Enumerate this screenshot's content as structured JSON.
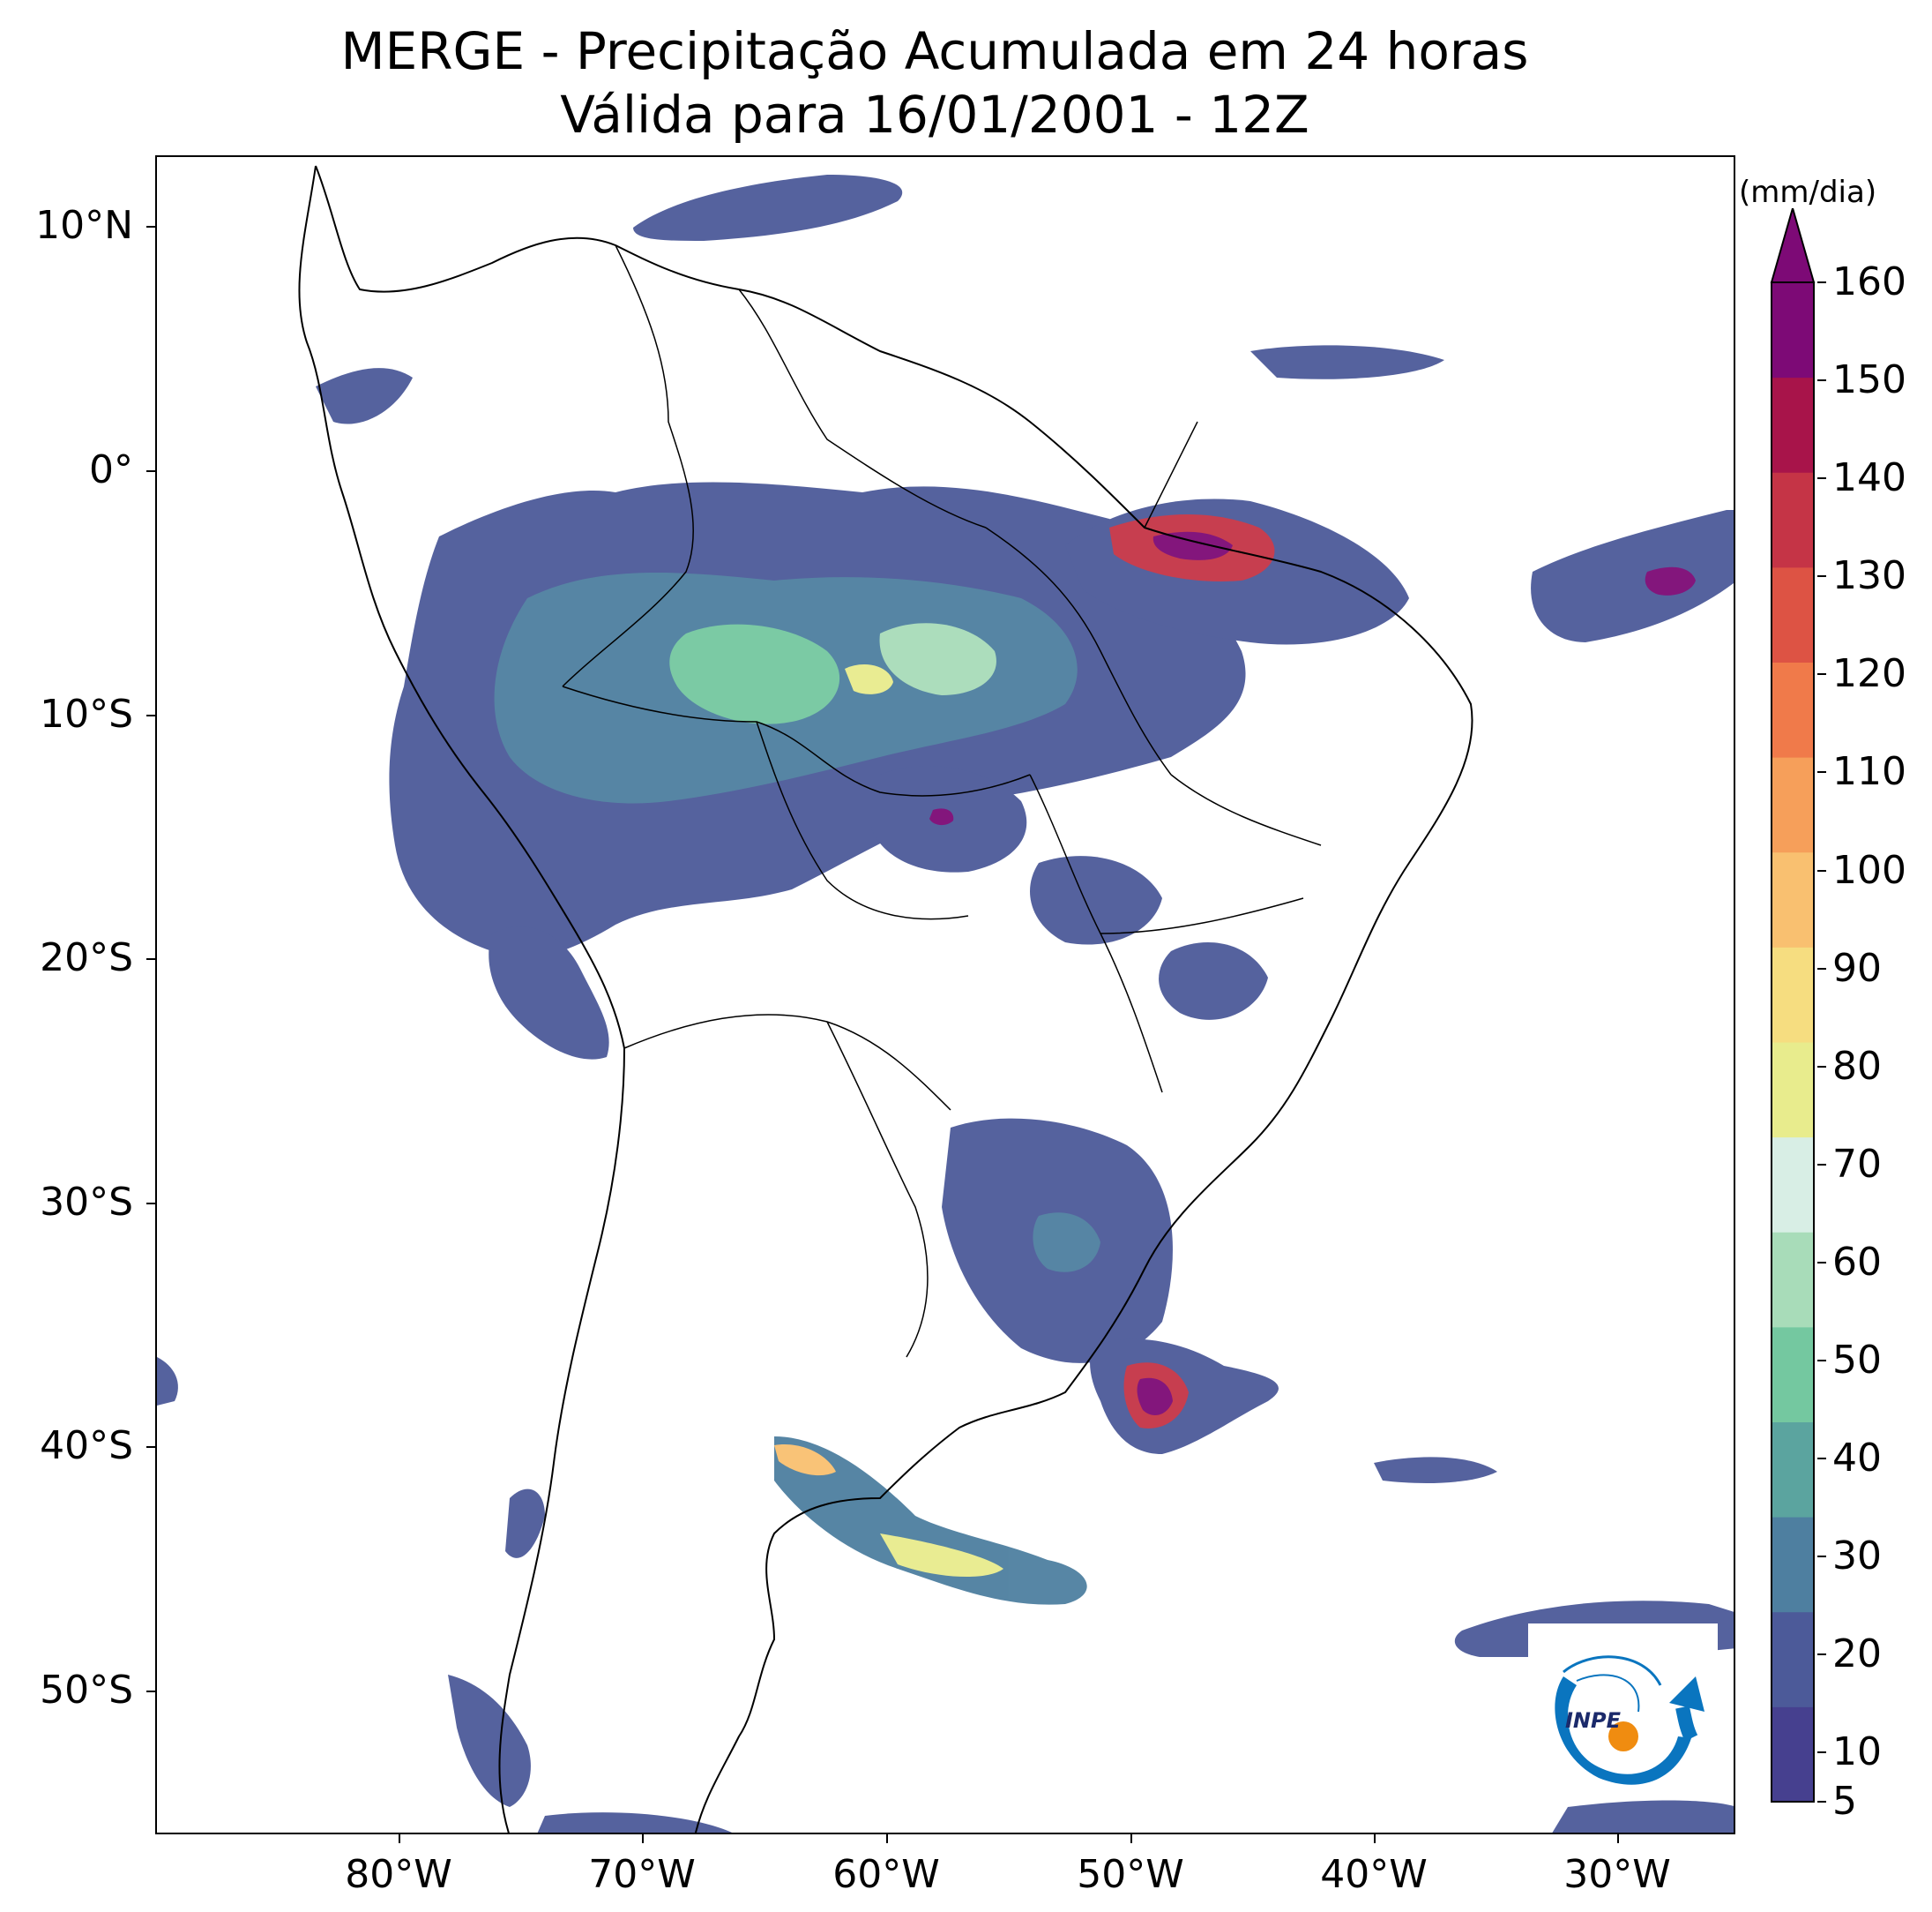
{
  "title": {
    "line1": "MERGE - Precipitação Acumulada em 24 horas",
    "line2": "Válida para 16/01/2001 - 12Z"
  },
  "map": {
    "region": "South America",
    "background": "#ffffff",
    "land_outline_color": "#000000",
    "lat_ticks": [
      "10°N",
      "0°",
      "10°S",
      "20°S",
      "30°S",
      "40°S",
      "50°S"
    ],
    "lon_ticks": [
      "80°W",
      "70°W",
      "60°W",
      "50°W",
      "40°W",
      "30°W"
    ]
  },
  "colorbar": {
    "unit": "(mm/dia)",
    "labels": [
      "160",
      "150",
      "140",
      "130",
      "120",
      "110",
      "100",
      "90",
      "80",
      "70",
      "60",
      "50",
      "40",
      "30",
      "20",
      "10",
      "5"
    ],
    "min": 5,
    "max": 160,
    "extend": "max",
    "colors": [
      "#46408f",
      "#4c5a99",
      "#4e7fa0",
      "#5ba49f",
      "#74c8a0",
      "#a8dcb9",
      "#d8eee5",
      "#e8ec8d",
      "#f6dd80",
      "#f9c070",
      "#f69f5a",
      "#f07a4a",
      "#dd5344",
      "#c53446",
      "#a8144a",
      "#7d0a76"
    ]
  },
  "logo": {
    "text": "INPE",
    "colors": {
      "blue": "#0a75bf",
      "orange": "#f08c10"
    }
  }
}
